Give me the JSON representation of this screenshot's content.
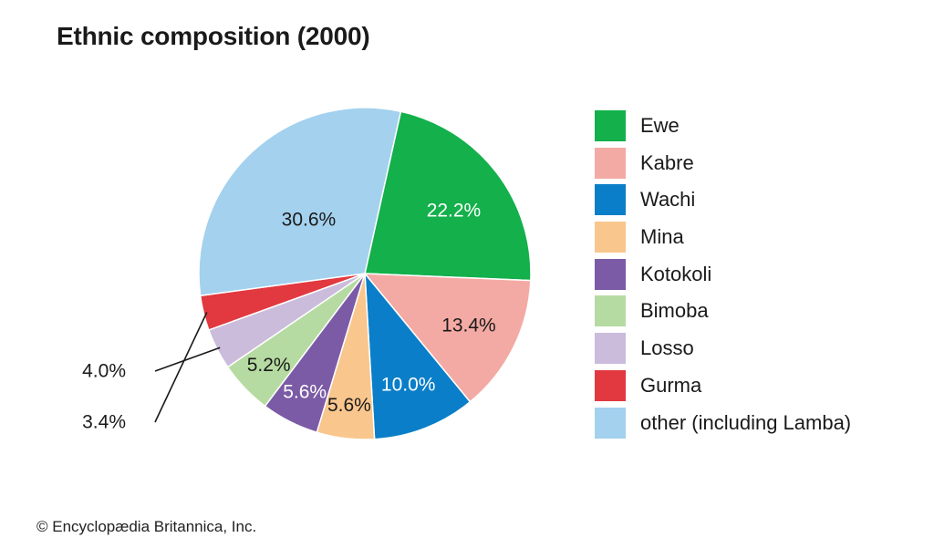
{
  "header": {
    "title": "Ethnic composition (2000)"
  },
  "footer": {
    "copyright": "© Encyclopædia Britannica, Inc."
  },
  "chart_data": {
    "type": "pie",
    "title": "Ethnic composition (2000)",
    "legend_position": "right",
    "slices": [
      {
        "name": "Ewe",
        "value": 22.2,
        "label": "22.2%",
        "color": "#13b04b",
        "label_color": "#ffffff"
      },
      {
        "name": "Kabre",
        "value": 13.4,
        "label": "13.4%",
        "color": "#f4aaa4",
        "label_color": "#1a1a1a"
      },
      {
        "name": "Wachi",
        "value": 10.0,
        "label": "10.0%",
        "color": "#0a7ec8",
        "label_color": "#ffffff"
      },
      {
        "name": "Mina",
        "value": 5.6,
        "label": "5.6%",
        "color": "#f9c68e",
        "label_color": "#1a1a1a"
      },
      {
        "name": "Kotokoli",
        "value": 5.6,
        "label": "5.6%",
        "color": "#7b5ba6",
        "label_color": "#ffffff"
      },
      {
        "name": "Bimoba",
        "value": 5.2,
        "label": "5.2%",
        "color": "#b6dba2",
        "label_color": "#1a1a1a"
      },
      {
        "name": "Losso",
        "value": 4.0,
        "label": "4.0%",
        "color": "#cbbcdc",
        "label_color": "#1a1a1a"
      },
      {
        "name": "Gurma",
        "value": 3.4,
        "label": "3.4%",
        "color": "#e1393f",
        "label_color": "#1a1a1a"
      },
      {
        "name": "other (including Lamba)",
        "value": 30.6,
        "label": "30.6%",
        "color": "#a3d1ee",
        "label_color": "#1a1a1a"
      }
    ]
  }
}
